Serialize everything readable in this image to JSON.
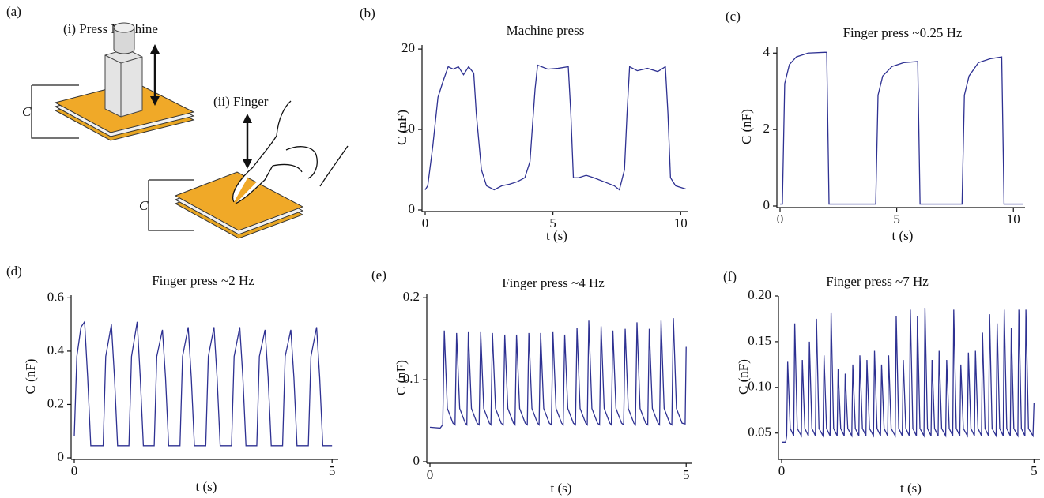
{
  "diagram": {
    "panel": "(a)",
    "press_label": "(i) Press Machine",
    "finger_label": "(ii) Finger",
    "cap_labels": [
      "C",
      "C"
    ]
  },
  "chart_data": [
    {
      "type": "line",
      "panel": "(b)",
      "title": "Machine press",
      "xlabel": "t (s)",
      "ylabel": "C (nF)",
      "xlim": [
        0,
        10.3
      ],
      "ylim": [
        0,
        20.5
      ],
      "xticks": [
        0,
        5,
        10
      ],
      "yticks": [
        0,
        10,
        20
      ],
      "x": [
        0,
        0.1,
        0.3,
        0.5,
        0.7,
        0.9,
        1.1,
        1.3,
        1.5,
        1.7,
        1.9,
        2.0,
        2.2,
        2.4,
        2.7,
        3.0,
        3.3,
        3.6,
        3.9,
        4.1,
        4.3,
        4.4,
        4.8,
        5.2,
        5.6,
        5.7,
        5.8,
        6.0,
        6.3,
        6.6,
        7.0,
        7.4,
        7.6,
        7.8,
        7.9,
        8.0,
        8.3,
        8.7,
        9.1,
        9.4,
        9.5,
        9.6,
        9.8,
        10.0,
        10.2
      ],
      "series": [
        {
          "color": "#2e3192",
          "values": [
            2.5,
            3,
            8,
            14,
            16,
            17.8,
            17.5,
            17.8,
            16.8,
            17.8,
            17,
            12,
            5,
            3,
            2.5,
            3,
            3.2,
            3.5,
            4,
            6,
            15,
            18,
            17.5,
            17.6,
            17.8,
            12,
            4,
            4,
            4.3,
            4,
            3.5,
            3,
            2.5,
            5,
            12,
            17.8,
            17.3,
            17.6,
            17.2,
            17.8,
            12,
            4,
            3,
            2.8,
            2.6
          ]
        }
      ]
    },
    {
      "type": "line",
      "panel": "(c)",
      "title": "Finger press ~0.25 Hz",
      "xlabel": "t (s)",
      "ylabel": "C (nF)",
      "xlim": [
        0,
        10.5
      ],
      "ylim": [
        0,
        4.15
      ],
      "xticks": [
        0,
        5,
        10
      ],
      "yticks": [
        0,
        2,
        4
      ],
      "x": [
        0,
        0.1,
        0.2,
        0.4,
        0.7,
        1.2,
        1.9,
        2.0,
        2.1,
        4.1,
        4.2,
        4.4,
        4.8,
        5.3,
        5.9,
        6.0,
        7.8,
        7.9,
        8.1,
        8.5,
        9.0,
        9.5,
        9.6,
        10.4
      ],
      "series": [
        {
          "color": "#2e3192",
          "values": [
            0.05,
            0.05,
            3.2,
            3.7,
            3.9,
            4.0,
            4.02,
            4.02,
            0.05,
            0.05,
            2.9,
            3.4,
            3.65,
            3.75,
            3.78,
            0.05,
            0.05,
            2.9,
            3.4,
            3.75,
            3.85,
            3.9,
            0.05,
            0.05
          ]
        }
      ]
    },
    {
      "type": "line",
      "panel": "(d)",
      "title": "Finger press  ~2 Hz",
      "xlabel": "t (s)",
      "ylabel": "C (nF)",
      "xlim": [
        0,
        5.12
      ],
      "ylim": [
        0,
        0.61
      ],
      "xticks": [
        0,
        5
      ],
      "yticks": [
        0,
        0.2,
        0.4,
        0.6
      ],
      "x": [
        0,
        0.05,
        0.13,
        0.2,
        0.26,
        0.32,
        0.56,
        0.61,
        0.72,
        0.78,
        0.84,
        1.06,
        1.11,
        1.22,
        1.28,
        1.34,
        1.55,
        1.6,
        1.71,
        1.77,
        1.83,
        2.05,
        2.1,
        2.21,
        2.27,
        2.33,
        2.55,
        2.6,
        2.71,
        2.77,
        2.83,
        3.05,
        3.1,
        3.21,
        3.27,
        3.33,
        3.54,
        3.59,
        3.7,
        3.76,
        3.82,
        4.04,
        4.09,
        4.2,
        4.26,
        4.32,
        4.54,
        4.59,
        4.7,
        4.76,
        4.82,
        5.0
      ],
      "series": [
        {
          "color": "#2e3192",
          "values": [
            0.08,
            0.38,
            0.49,
            0.51,
            0.3,
            0.045,
            0.045,
            0.38,
            0.5,
            0.3,
            0.045,
            0.045,
            0.38,
            0.51,
            0.3,
            0.045,
            0.045,
            0.38,
            0.48,
            0.3,
            0.045,
            0.045,
            0.38,
            0.49,
            0.3,
            0.045,
            0.045,
            0.38,
            0.49,
            0.3,
            0.045,
            0.045,
            0.38,
            0.49,
            0.3,
            0.045,
            0.045,
            0.38,
            0.48,
            0.3,
            0.045,
            0.045,
            0.38,
            0.48,
            0.3,
            0.045,
            0.045,
            0.38,
            0.49,
            0.3,
            0.045,
            0.045
          ]
        }
      ]
    },
    {
      "type": "line",
      "panel": "(e)",
      "title": "Finger press ~4 Hz",
      "xlabel": "t (s)",
      "ylabel": "C (nF)",
      "xlim": [
        0,
        5.12
      ],
      "ylim": [
        0,
        0.205
      ],
      "xticks": [
        0,
        5
      ],
      "yticks": [
        0,
        0.1,
        0.2
      ],
      "x": [
        0,
        0.2,
        0.25,
        0.28,
        0.34,
        0.45,
        0.49,
        0.52,
        0.58,
        0.69,
        0.72,
        0.75,
        0.81,
        0.92,
        0.96,
        0.99,
        1.05,
        1.16,
        1.19,
        1.22,
        1.28,
        1.39,
        1.43,
        1.46,
        1.52,
        1.63,
        1.66,
        1.69,
        1.75,
        1.86,
        1.9,
        1.93,
        1.99,
        2.1,
        2.13,
        2.16,
        2.22,
        2.33,
        2.37,
        2.4,
        2.46,
        2.57,
        2.6,
        2.63,
        2.69,
        2.8,
        2.84,
        2.87,
        2.93,
        3.04,
        3.07,
        3.1,
        3.16,
        3.27,
        3.31,
        3.34,
        3.4,
        3.51,
        3.54,
        3.57,
        3.63,
        3.74,
        3.78,
        3.81,
        3.87,
        3.98,
        4.01,
        4.04,
        4.1,
        4.21,
        4.25,
        4.28,
        4.34,
        4.45,
        4.48,
        4.51,
        4.57,
        4.68,
        4.72,
        4.75,
        4.81,
        4.92,
        4.98,
        5.0
      ],
      "series": [
        {
          "color": "#2e3192",
          "values": [
            0.042,
            0.041,
            0.045,
            0.16,
            0.065,
            0.047,
            0.045,
            0.157,
            0.065,
            0.047,
            0.045,
            0.158,
            0.065,
            0.047,
            0.045,
            0.158,
            0.065,
            0.047,
            0.045,
            0.157,
            0.065,
            0.047,
            0.045,
            0.155,
            0.065,
            0.047,
            0.045,
            0.155,
            0.065,
            0.047,
            0.045,
            0.157,
            0.065,
            0.047,
            0.045,
            0.157,
            0.065,
            0.047,
            0.045,
            0.158,
            0.065,
            0.047,
            0.045,
            0.155,
            0.065,
            0.047,
            0.045,
            0.163,
            0.065,
            0.047,
            0.045,
            0.172,
            0.065,
            0.047,
            0.045,
            0.165,
            0.065,
            0.047,
            0.045,
            0.16,
            0.065,
            0.047,
            0.045,
            0.162,
            0.065,
            0.047,
            0.045,
            0.17,
            0.065,
            0.047,
            0.045,
            0.162,
            0.065,
            0.047,
            0.045,
            0.172,
            0.065,
            0.047,
            0.045,
            0.175,
            0.065,
            0.047,
            0.046,
            0.14
          ]
        }
      ]
    },
    {
      "type": "line",
      "panel": "(f)",
      "title": "Finger press ~7 Hz",
      "xlabel": "t (s)",
      "ylabel": "C (nF)",
      "xlim": [
        0,
        5.12
      ],
      "ylim": [
        0.023,
        0.2
      ],
      "xticks": [
        0,
        5
      ],
      "yticks": [
        0.05,
        {
          "value": 0.1,
          "label": "0.10"
        },
        0.15,
        {
          "value": 0.2,
          "label": "0.20"
        }
      ],
      "x": [
        0,
        0.08,
        0.1,
        0.12,
        0.17,
        0.24,
        0.26,
        0.31,
        0.39,
        0.41,
        0.46,
        0.53,
        0.55,
        0.6,
        0.67,
        0.69,
        0.74,
        0.82,
        0.84,
        0.89,
        0.96,
        0.98,
        1.03,
        1.1,
        1.12,
        1.17,
        1.24,
        1.26,
        1.31,
        1.39,
        1.41,
        1.46,
        1.53,
        1.55,
        1.6,
        1.67,
        1.69,
        1.74,
        1.82,
        1.84,
        1.89,
        1.96,
        1.98,
        2.03,
        2.1,
        2.12,
        2.17,
        2.25,
        2.27,
        2.32,
        2.39,
        2.41,
        2.46,
        2.53,
        2.55,
        2.6,
        2.67,
        2.69,
        2.74,
        2.82,
        2.84,
        2.89,
        2.96,
        2.98,
        3.03,
        3.1,
        3.12,
        3.17,
        3.25,
        3.27,
        3.32,
        3.39,
        3.41,
        3.46,
        3.53,
        3.55,
        3.6,
        3.68,
        3.7,
        3.75,
        3.82,
        3.84,
        3.89,
        3.96,
        3.98,
        4.03,
        4.1,
        4.12,
        4.17,
        4.25,
        4.27,
        4.32,
        4.39,
        4.41,
        4.46,
        4.53,
        4.55,
        4.6,
        4.68,
        4.7,
        4.75,
        4.82,
        4.84,
        4.89,
        4.98,
        5.0
      ],
      "series": [
        {
          "color": "#2e3192",
          "values": [
            0.04,
            0.04,
            0.047,
            0.128,
            0.055,
            0.047,
            0.17,
            0.055,
            0.047,
            0.13,
            0.055,
            0.047,
            0.15,
            0.055,
            0.047,
            0.175,
            0.055,
            0.047,
            0.135,
            0.055,
            0.047,
            0.182,
            0.055,
            0.047,
            0.12,
            0.055,
            0.047,
            0.115,
            0.055,
            0.047,
            0.125,
            0.055,
            0.047,
            0.135,
            0.055,
            0.047,
            0.13,
            0.055,
            0.047,
            0.14,
            0.055,
            0.047,
            0.125,
            0.055,
            0.047,
            0.135,
            0.055,
            0.047,
            0.178,
            0.055,
            0.047,
            0.13,
            0.055,
            0.047,
            0.185,
            0.055,
            0.047,
            0.178,
            0.055,
            0.047,
            0.187,
            0.055,
            0.047,
            0.13,
            0.055,
            0.047,
            0.14,
            0.055,
            0.047,
            0.13,
            0.055,
            0.047,
            0.185,
            0.055,
            0.047,
            0.125,
            0.055,
            0.047,
            0.138,
            0.055,
            0.047,
            0.14,
            0.055,
            0.047,
            0.16,
            0.055,
            0.047,
            0.18,
            0.055,
            0.047,
            0.17,
            0.055,
            0.047,
            0.185,
            0.055,
            0.047,
            0.165,
            0.055,
            0.047,
            0.185,
            0.055,
            0.047,
            0.185,
            0.055,
            0.047,
            0.083
          ]
        }
      ]
    }
  ]
}
